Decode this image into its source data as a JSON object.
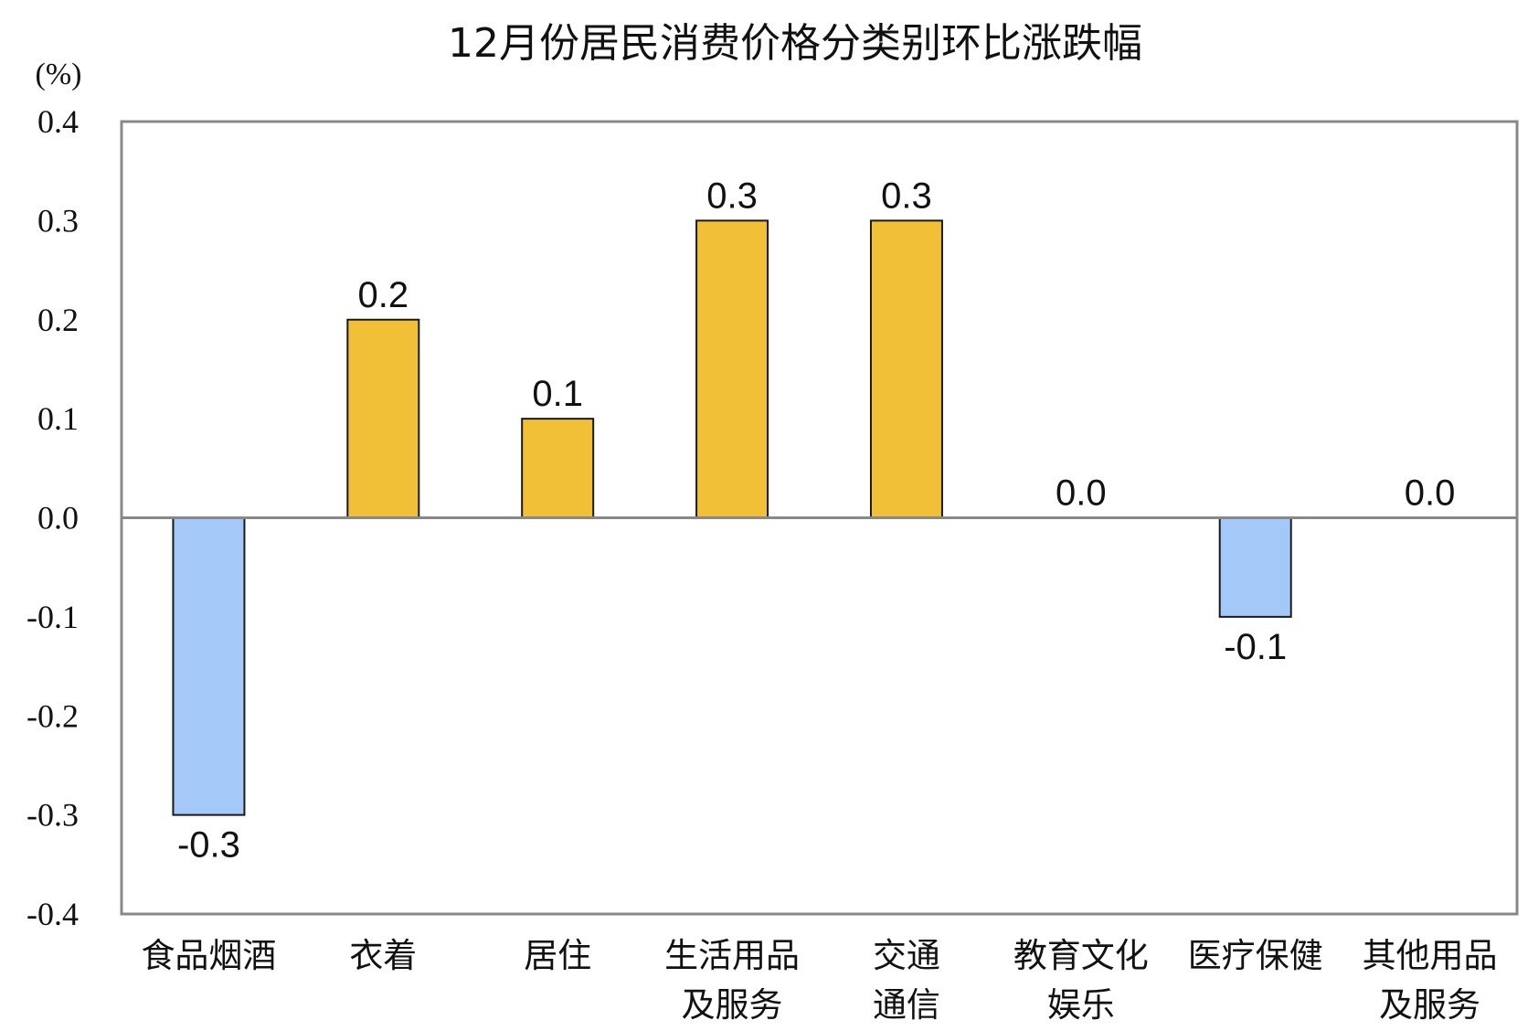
{
  "chart_data": {
    "type": "bar",
    "title": "12月份居民消费价格分类别环比涨跌幅",
    "unit_label": "(%)",
    "categories": [
      [
        "食品烟酒"
      ],
      [
        "衣着"
      ],
      [
        "居住"
      ],
      [
        "生活用品",
        "及服务"
      ],
      [
        "交通",
        "通信"
      ],
      [
        "教育文化",
        "娱乐"
      ],
      [
        "医疗保健"
      ],
      [
        "其他用品",
        "及服务"
      ]
    ],
    "values": [
      -0.3,
      0.2,
      0.1,
      0.3,
      0.3,
      0.0,
      -0.1,
      0.0
    ],
    "value_labels": [
      "-0.3",
      "0.2",
      "0.1",
      "0.3",
      "0.3",
      "0.0",
      "-0.1",
      "0.0"
    ],
    "ylim": [
      -0.4,
      0.4
    ],
    "yticks": [
      "0.4",
      "0.3",
      "0.2",
      "0.1",
      "0.0",
      "-0.1",
      "-0.2",
      "-0.3",
      "-0.4"
    ],
    "ytick_values": [
      0.4,
      0.3,
      0.2,
      0.1,
      0.0,
      -0.1,
      -0.2,
      -0.3,
      -0.4
    ],
    "grid": false,
    "colors": {
      "positive": "#F2C037",
      "negative": "#A4C8F7",
      "bar_stroke": "#1a1a1a",
      "frame": "#888888",
      "zero_line": "#888888"
    }
  }
}
